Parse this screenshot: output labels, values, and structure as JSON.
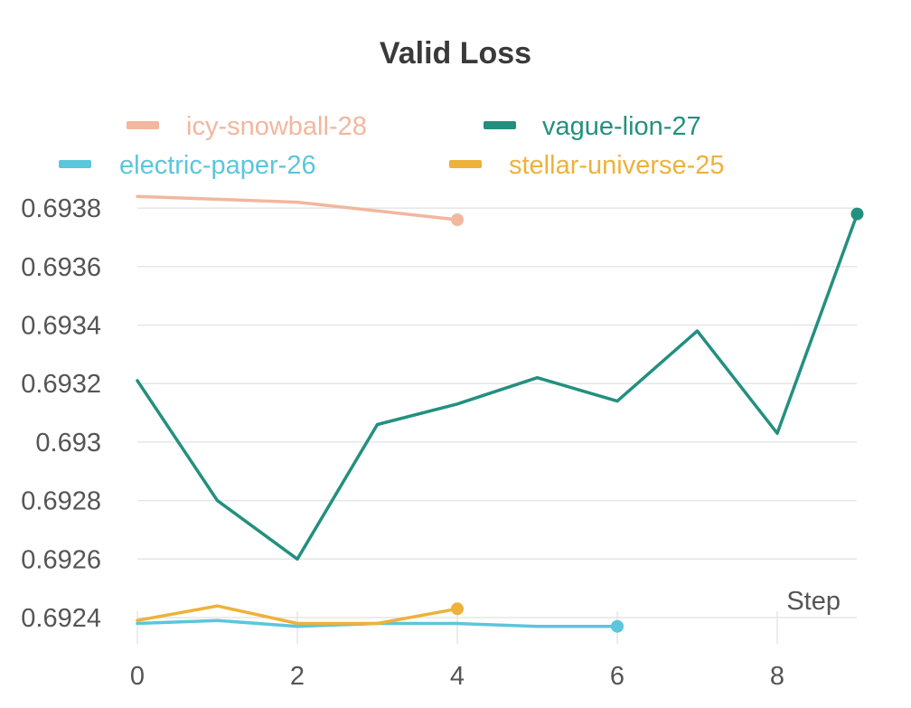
{
  "chart_data": {
    "type": "line",
    "title": "Valid Loss",
    "xlabel": "Step",
    "ylabel": "",
    "xlim": [
      0,
      9
    ],
    "ylim": [
      0.69237,
      0.69386
    ],
    "x_ticks": [
      0,
      2,
      4,
      6,
      8
    ],
    "y_ticks": [
      0.6924,
      0.6926,
      0.6928,
      0.693,
      0.6932,
      0.6934,
      0.6936,
      0.6938
    ],
    "y_tick_labels": [
      "0.6924",
      "0.6926",
      "0.6928",
      "0.693",
      "0.6932",
      "0.6934",
      "0.6936",
      "0.6938"
    ],
    "grid": true,
    "legend_position": "top",
    "series": [
      {
        "name": "icy-snowball-28",
        "color": "#f2b79e",
        "x": [
          0,
          1,
          2,
          3,
          4
        ],
        "y": [
          0.69384,
          0.69383,
          0.69382,
          0.69379,
          0.69376
        ]
      },
      {
        "name": "vague-lion-27",
        "color": "#23907f",
        "x": [
          0,
          1,
          2,
          3,
          4,
          5,
          6,
          7,
          8,
          9
        ],
        "y": [
          0.69321,
          0.6928,
          0.6926,
          0.69306,
          0.69313,
          0.69322,
          0.69314,
          0.69338,
          0.69303,
          0.69378
        ]
      },
      {
        "name": "electric-paper-26",
        "color": "#5bc6dc",
        "x": [
          0,
          1,
          2,
          3,
          4,
          5,
          6
        ],
        "y": [
          0.69238,
          0.69239,
          0.69237,
          0.69238,
          0.69238,
          0.69237,
          0.69237
        ]
      },
      {
        "name": "stellar-universe-25",
        "color": "#edb23a",
        "x": [
          0,
          1,
          2,
          3,
          4
        ],
        "y": [
          0.69239,
          0.69244,
          0.69238,
          0.69238,
          0.69243
        ]
      }
    ]
  }
}
